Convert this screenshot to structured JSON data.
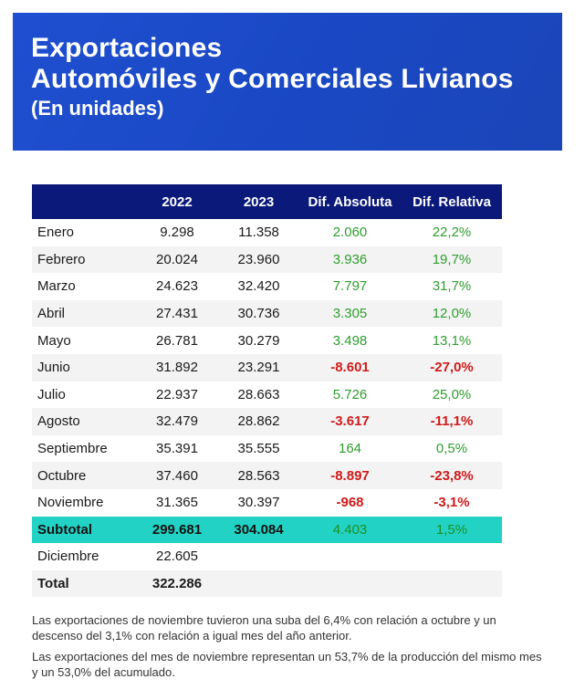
{
  "header": {
    "line1": "Exportaciones",
    "line2": "Automóviles y Comerciales Livianos",
    "line3": "(En unidades)"
  },
  "table": {
    "columns": [
      "",
      "2022",
      "2023",
      "Dif. Absoluta",
      "Dif. Relativa"
    ],
    "rows": [
      {
        "month": "Enero",
        "y2022": "9.298",
        "y2023": "11.358",
        "abs": "2.060",
        "rel": "22,2%",
        "sign": "pos"
      },
      {
        "month": "Febrero",
        "y2022": "20.024",
        "y2023": "23.960",
        "abs": "3.936",
        "rel": "19,7%",
        "sign": "pos"
      },
      {
        "month": "Marzo",
        "y2022": "24.623",
        "y2023": "32.420",
        "abs": "7.797",
        "rel": "31,7%",
        "sign": "pos"
      },
      {
        "month": "Abril",
        "y2022": "27.431",
        "y2023": "30.736",
        "abs": "3.305",
        "rel": "12,0%",
        "sign": "pos"
      },
      {
        "month": "Mayo",
        "y2022": "26.781",
        "y2023": "30.279",
        "abs": "3.498",
        "rel": "13,1%",
        "sign": "pos"
      },
      {
        "month": "Junio",
        "y2022": "31.892",
        "y2023": "23.291",
        "abs": "-8.601",
        "rel": "-27,0%",
        "sign": "neg"
      },
      {
        "month": "Julio",
        "y2022": "22.937",
        "y2023": "28.663",
        "abs": "5.726",
        "rel": "25,0%",
        "sign": "pos"
      },
      {
        "month": "Agosto",
        "y2022": "32.479",
        "y2023": "28.862",
        "abs": "-3.617",
        "rel": "-11,1%",
        "sign": "neg"
      },
      {
        "month": "Septiembre",
        "y2022": "35.391",
        "y2023": "35.555",
        "abs": "164",
        "rel": "0,5%",
        "sign": "pos"
      },
      {
        "month": "Octubre",
        "y2022": "37.460",
        "y2023": "28.563",
        "abs": "-8.897",
        "rel": "-23,8%",
        "sign": "neg"
      },
      {
        "month": "Noviembre",
        "y2022": "31.365",
        "y2023": "30.397",
        "abs": "-968",
        "rel": "-3,1%",
        "sign": "neg"
      }
    ],
    "subtotal": {
      "label": "Subtotal",
      "y2022": "299.681",
      "y2023": "304.084",
      "abs": "4.403",
      "rel": "1,5%"
    },
    "diciembre": {
      "label": "Diciembre",
      "y2022": "22.605"
    },
    "total": {
      "label": "Total",
      "y2022": "322.286"
    }
  },
  "notes": {
    "p1": "Las exportaciones de noviembre tuvieron una suba del 6,4% con relación a octubre y un descenso del 3,1% con relación a igual mes del año anterior.",
    "p2": "Las exportaciones del mes de noviembre representan un 53,7% de la producción del mismo mes y un 53,0% del acumulado."
  },
  "colors": {
    "header_bg": "#1f4fd0",
    "table_header_bg": "#0b1a7a",
    "subtotal_bg": "#22d3c5",
    "positive": "#2e9e2e",
    "negative": "#d11a1a"
  }
}
